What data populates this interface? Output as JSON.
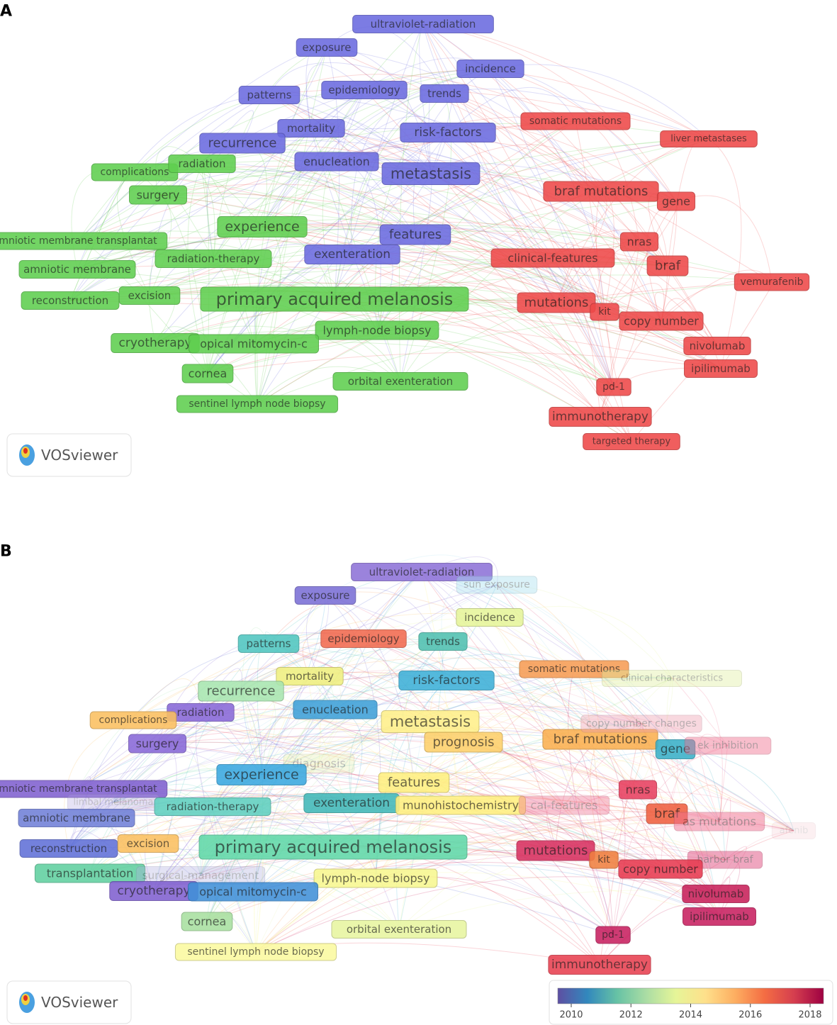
{
  "panels": [
    {
      "label": "A",
      "logo": "VOSviewer",
      "nodes": [
        {
          "label": "ultraviolet-radiation",
          "color": "#6b6be0"
        },
        {
          "label": "exposure",
          "color": "#6b6be0"
        },
        {
          "label": "incidence",
          "color": "#6b6be0"
        },
        {
          "label": "patterns",
          "color": "#6b6be0"
        },
        {
          "label": "epidemiology",
          "color": "#6b6be0"
        },
        {
          "label": "trends",
          "color": "#6b6be0"
        },
        {
          "label": "mortality",
          "color": "#6b6be0"
        },
        {
          "label": "risk-factors",
          "color": "#6b6be0"
        },
        {
          "label": "recurrence",
          "color": "#6b6be0"
        },
        {
          "label": "enucleation",
          "color": "#6b6be0"
        },
        {
          "label": "metastasis",
          "color": "#6b6be0"
        },
        {
          "label": "somatic mutations",
          "color": "#ee4848"
        },
        {
          "label": "liver metastases",
          "color": "#ee4848"
        },
        {
          "label": "complications",
          "color": "#5fcf4f"
        },
        {
          "label": "radiation",
          "color": "#5fcf4f"
        },
        {
          "label": "braf mutations",
          "color": "#ee4848"
        },
        {
          "label": "gene",
          "color": "#ee4848"
        },
        {
          "label": "surgery",
          "color": "#5fcf4f"
        },
        {
          "label": "experience",
          "color": "#5fcf4f"
        },
        {
          "label": "features",
          "color": "#6b6be0"
        },
        {
          "label": "mniotic membrane transplantat",
          "color": "#5fcf4f"
        },
        {
          "label": "radiation-therapy",
          "color": "#5fcf4f"
        },
        {
          "label": "exenteration",
          "color": "#6b6be0"
        },
        {
          "label": "clinical-features",
          "color": "#ee4848"
        },
        {
          "label": "nras",
          "color": "#ee4848"
        },
        {
          "label": "braf",
          "color": "#ee4848"
        },
        {
          "label": "vemurafenib",
          "color": "#ee4848"
        },
        {
          "label": "amniotic membrane",
          "color": "#5fcf4f"
        },
        {
          "label": "reconstruction",
          "color": "#5fcf4f"
        },
        {
          "label": "excision",
          "color": "#5fcf4f"
        },
        {
          "label": "primary acquired melanosis",
          "color": "#5fcf4f"
        },
        {
          "label": "mutations",
          "color": "#ee4848"
        },
        {
          "label": "kit",
          "color": "#ee4848"
        },
        {
          "label": "copy number",
          "color": "#ee4848"
        },
        {
          "label": "lymph-node biopsy",
          "color": "#5fcf4f"
        },
        {
          "label": "cryotherapy",
          "color": "#5fcf4f"
        },
        {
          "label": "opical mitomycin-c",
          "color": "#5fcf4f"
        },
        {
          "label": "nivolumab",
          "color": "#ee4848"
        },
        {
          "label": "ipilimumab",
          "color": "#ee4848"
        },
        {
          "label": "cornea",
          "color": "#5fcf4f"
        },
        {
          "label": "orbital exenteration",
          "color": "#5fcf4f"
        },
        {
          "label": "pd-1",
          "color": "#ee4848"
        },
        {
          "label": "sentinel lymph node biopsy",
          "color": "#5fcf4f"
        },
        {
          "label": "immunotherapy",
          "color": "#ee4848"
        },
        {
          "label": "targeted therapy",
          "color": "#ee4848"
        }
      ]
    },
    {
      "label": "B",
      "logo": "VOSviewer",
      "nodes": [
        {
          "label": "ultraviolet-radiation",
          "color": "#8e73d8"
        },
        {
          "label": "sun exposure",
          "color": "#a8dff0"
        },
        {
          "label": "exposure",
          "color": "#7b6fd6"
        },
        {
          "label": "incidence",
          "color": "#e6f59a"
        },
        {
          "label": "epidemiology",
          "color": "#f26a4f"
        },
        {
          "label": "patterns",
          "color": "#4fc6c0"
        },
        {
          "label": "trends",
          "color": "#4fc0b0"
        },
        {
          "label": "risk-factors",
          "color": "#3db0d8"
        },
        {
          "label": "somatic mutations",
          "color": "#f79d55"
        },
        {
          "label": "clinical characteristics",
          "color": "#e0f0a0"
        },
        {
          "label": "mortality",
          "color": "#f0f080"
        },
        {
          "label": "recurrence",
          "color": "#a8e6b0"
        },
        {
          "label": "radiation",
          "color": "#8868d8"
        },
        {
          "label": "complications",
          "color": "#fbc060"
        },
        {
          "label": "enucleation",
          "color": "#3ea0d8"
        },
        {
          "label": "metastasis",
          "color": "#fff08a"
        },
        {
          "label": "prognosis",
          "color": "#fdd06a"
        },
        {
          "label": "braf mutations",
          "color": "#fbb050"
        },
        {
          "label": "copy number changes",
          "color": "#f0a0b0"
        },
        {
          "label": "gene",
          "color": "#3ab0c8"
        },
        {
          "label": "ek inhibition",
          "color": "#f07090"
        },
        {
          "label": "surgery",
          "color": "#8868d8"
        },
        {
          "label": "diagnosis",
          "color": "#e8f0b0"
        },
        {
          "label": "experience",
          "color": "#3aa8e0"
        },
        {
          "label": "features",
          "color": "#fff080"
        },
        {
          "label": "mniotic membrane transplantat",
          "color": "#8060d0"
        },
        {
          "label": "limbal melanoma",
          "color": "#b0a0e0"
        },
        {
          "label": "radiation-therapy",
          "color": "#60d0c0"
        },
        {
          "label": "exenteration",
          "color": "#40b8b8"
        },
        {
          "label": "munohistochemistry",
          "color": "#fff080"
        },
        {
          "label": "cal-features",
          "color": "#f07090"
        },
        {
          "label": "nras",
          "color": "#e84060"
        },
        {
          "label": "braf",
          "color": "#f06040"
        },
        {
          "label": "as mutations",
          "color": "#f07090"
        },
        {
          "label": "afenib",
          "color": "#f0a0b0"
        },
        {
          "label": "amniotic membrane",
          "color": "#7080d8"
        },
        {
          "label": "reconstruction",
          "color": "#6070d8"
        },
        {
          "label": "excision",
          "color": "#fbc060"
        },
        {
          "label": "primary acquired melanosis",
          "color": "#60d8a8"
        },
        {
          "label": "mutations",
          "color": "#d83060"
        },
        {
          "label": "kit",
          "color": "#f08040"
        },
        {
          "label": "harbor braf",
          "color": "#e05080"
        },
        {
          "label": "copy number",
          "color": "#e83a50"
        },
        {
          "label": "transplantation",
          "color": "#60d0a0"
        },
        {
          "label": "surgical-management",
          "color": "#b0b0e0"
        },
        {
          "label": "lymph-node biopsy",
          "color": "#f8f890"
        },
        {
          "label": "cryotherapy",
          "color": "#8060d0"
        },
        {
          "label": "opical mitomycin-c",
          "color": "#4090d8"
        },
        {
          "label": "nivolumab",
          "color": "#c8205a"
        },
        {
          "label": "ipilimumab",
          "color": "#c82060"
        },
        {
          "label": "cornea",
          "color": "#a8e0a0"
        },
        {
          "label": "orbital exenteration",
          "color": "#e8f5a0"
        },
        {
          "label": "pd-1",
          "color": "#c82060"
        },
        {
          "label": "sentinel lymph node biopsy",
          "color": "#fbfaa0"
        },
        {
          "label": "immunotherapy",
          "color": "#e84050"
        }
      ],
      "colorbar": {
        "ticks": [
          2010,
          2012,
          2014,
          2016,
          2018
        ],
        "colors": [
          "#5e4fa2",
          "#3288bd",
          "#66c2a5",
          "#abdda4",
          "#e6f598",
          "#fee08b",
          "#fdae61",
          "#f46d43",
          "#d53e4f",
          "#9e0142"
        ]
      }
    }
  ]
}
